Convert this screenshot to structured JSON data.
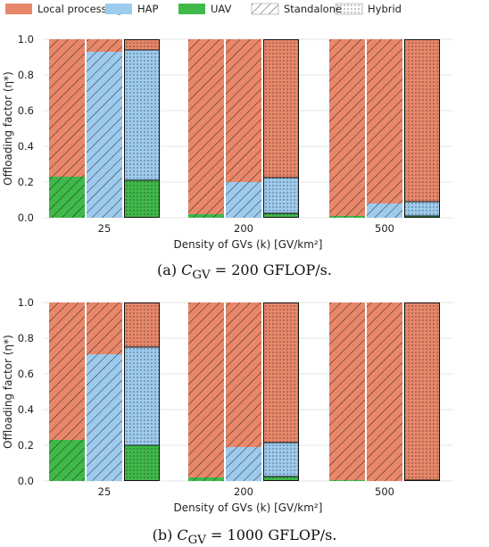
{
  "legend": {
    "items": [
      {
        "label": "Local processing",
        "color": "#E8876A",
        "kind": "fill"
      },
      {
        "label": "HAP",
        "color": "#9DCBEE",
        "kind": "fill"
      },
      {
        "label": "UAV",
        "color": "#3FB94A",
        "kind": "fill"
      },
      {
        "label": "Standalone",
        "kind": "hatch"
      },
      {
        "label": "Hybrid",
        "kind": "dots"
      }
    ]
  },
  "captions": {
    "a": {
      "prefix": "(a) ",
      "math": "C",
      "sub": "GV",
      "suffix": " = 200 GFLOP/s."
    },
    "b": {
      "prefix": "(b) ",
      "math": "C",
      "sub": "GV",
      "suffix": " = 1000 GFLOP/s."
    }
  },
  "chart_data": [
    {
      "type": "bar",
      "stacked": true,
      "ylabel": "Offloading factor (η*)",
      "xlabel": "Density of GVs (k) [GV/km²]",
      "ylim": [
        0,
        1.0
      ],
      "yticks": [
        "0.0",
        "0.2",
        "0.4",
        "0.6",
        "0.8",
        "1.0"
      ],
      "grid": true,
      "groups": [
        {
          "label": "25",
          "bars": [
            {
              "pattern": "standalone",
              "uav": 0.23,
              "hap": 0.0,
              "local": 0.77
            },
            {
              "pattern": "standalone",
              "uav": 0.0,
              "hap": 0.93,
              "local": 0.07
            },
            {
              "pattern": "hybrid",
              "uav": 0.21,
              "hap": 0.73,
              "local": 0.06
            }
          ]
        },
        {
          "label": "200",
          "bars": [
            {
              "pattern": "standalone",
              "uav": 0.02,
              "hap": 0.0,
              "local": 0.98
            },
            {
              "pattern": "standalone",
              "uav": 0.0,
              "hap": 0.2,
              "local": 0.8
            },
            {
              "pattern": "hybrid",
              "uav": 0.025,
              "hap": 0.2,
              "local": 0.775
            }
          ]
        },
        {
          "label": "500",
          "bars": [
            {
              "pattern": "standalone",
              "uav": 0.01,
              "hap": 0.0,
              "local": 0.99
            },
            {
              "pattern": "standalone",
              "uav": 0.0,
              "hap": 0.08,
              "local": 0.92
            },
            {
              "pattern": "hybrid",
              "uav": 0.01,
              "hap": 0.08,
              "local": 0.91
            }
          ]
        }
      ]
    },
    {
      "type": "bar",
      "stacked": true,
      "ylabel": "Offloading factor (η*)",
      "xlabel": "Density of GVs (k) [GV/km²]",
      "ylim": [
        0,
        1.0
      ],
      "yticks": [
        "0.0",
        "0.2",
        "0.4",
        "0.6",
        "0.8",
        "1.0"
      ],
      "grid": true,
      "groups": [
        {
          "label": "25",
          "bars": [
            {
              "pattern": "standalone",
              "uav": 0.23,
              "hap": 0.0,
              "local": 0.77
            },
            {
              "pattern": "standalone",
              "uav": 0.0,
              "hap": 0.71,
              "local": 0.29
            },
            {
              "pattern": "hybrid",
              "uav": 0.2,
              "hap": 0.55,
              "local": 0.25
            }
          ]
        },
        {
          "label": "200",
          "bars": [
            {
              "pattern": "standalone",
              "uav": 0.02,
              "hap": 0.0,
              "local": 0.98
            },
            {
              "pattern": "standalone",
              "uav": 0.0,
              "hap": 0.19,
              "local": 0.81
            },
            {
              "pattern": "hybrid",
              "uav": 0.025,
              "hap": 0.19,
              "local": 0.785
            }
          ]
        },
        {
          "label": "500",
          "bars": [
            {
              "pattern": "standalone",
              "uav": 0.005,
              "hap": 0.0,
              "local": 0.995
            },
            {
              "pattern": "standalone",
              "uav": 0.0,
              "hap": 0.0,
              "local": 1.0
            },
            {
              "pattern": "hybrid",
              "uav": 0.005,
              "hap": 0.0,
              "local": 0.995
            }
          ]
        }
      ]
    }
  ]
}
